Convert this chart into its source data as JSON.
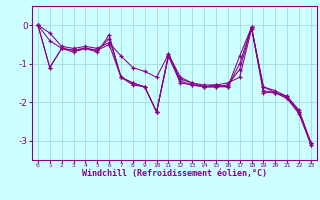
{
  "x": [
    0,
    1,
    2,
    3,
    4,
    5,
    6,
    7,
    8,
    9,
    10,
    11,
    12,
    13,
    14,
    15,
    16,
    17,
    18,
    19,
    20,
    21,
    22,
    23
  ],
  "line1": [
    0.0,
    -0.2,
    -0.55,
    -0.6,
    -0.55,
    -0.6,
    -0.45,
    -0.8,
    -1.1,
    -1.2,
    -1.35,
    -0.75,
    -1.35,
    -1.5,
    -1.55,
    -1.55,
    -1.6,
    -0.8,
    -0.05,
    -1.6,
    -1.7,
    -1.85,
    -2.2,
    -3.05
  ],
  "line2": [
    0.0,
    -0.4,
    -0.6,
    -0.65,
    -0.6,
    -0.65,
    -0.5,
    -1.35,
    -1.55,
    -1.6,
    -2.25,
    -0.75,
    -1.4,
    -1.5,
    -1.6,
    -1.55,
    -1.5,
    -1.35,
    -0.1,
    -1.6,
    -1.75,
    -1.85,
    -2.25,
    -3.05
  ],
  "line3": [
    0.0,
    -1.1,
    -0.6,
    -0.65,
    -0.6,
    -0.65,
    -0.35,
    -1.35,
    -1.5,
    -1.6,
    -2.25,
    -0.8,
    -1.45,
    -1.55,
    -1.6,
    -1.6,
    -1.55,
    -1.15,
    -0.05,
    -1.7,
    -1.75,
    -1.9,
    -2.25,
    -3.1
  ],
  "line4": [
    0.0,
    -1.1,
    -0.6,
    -0.7,
    -0.6,
    -0.7,
    -0.25,
    -1.35,
    -1.5,
    -1.6,
    -2.25,
    -0.8,
    -1.5,
    -1.55,
    -1.6,
    -1.6,
    -1.6,
    -1.0,
    -0.05,
    -1.75,
    -1.75,
    -1.9,
    -2.3,
    -3.1
  ],
  "line_color": "#880088",
  "bg_color": "#ccffff",
  "grid_color": "#aadddd",
  "xlabel": "Windchill (Refroidissement éolien,°C)",
  "ylabel": "",
  "ylim": [
    -3.5,
    0.5
  ],
  "xlim": [
    -0.5,
    23.5
  ],
  "yticks": [
    0,
    -1,
    -2,
    -3
  ],
  "xticks": [
    0,
    1,
    2,
    3,
    4,
    5,
    6,
    7,
    8,
    9,
    10,
    11,
    12,
    13,
    14,
    15,
    16,
    17,
    18,
    19,
    20,
    21,
    22,
    23
  ]
}
